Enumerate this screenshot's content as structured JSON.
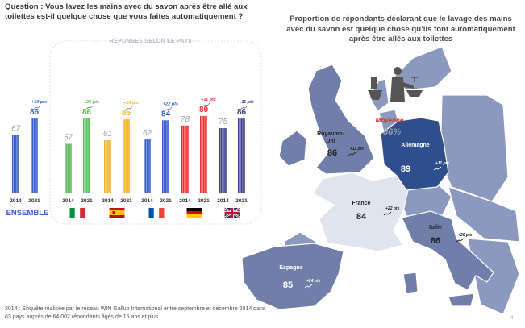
{
  "question": {
    "label": "Question :",
    "text": " Vous lavez les mains avec du savon après être allé aux toilettes est-il quelque chose que vous faites automatiquement ?"
  },
  "panel_title": "RÉPONSES SELON  LE PAYS",
  "map_title": "Proportion de répondants déclarant que le lavage des mains avec du savon est quelque chose qu’ils font automatiquement après être allés aux toilettes",
  "footnote": "2014 : Enquête réalisée par le réseau WIN Gallup International entre septembre et décembre 2014 dans 63 pays auprès de 64 002 répondants âgés de 15 ans et plus.",
  "page_number": "4",
  "colors": {
    "ensemble": "#3a5fc8",
    "italy": "#5cb85c",
    "spain": "#f2b229",
    "france": "#3a5fc8",
    "germany": "#e8302f",
    "uk": "#3a3d8f",
    "map_uk": "#6f7fa9",
    "map_germany": "#2f4f8c",
    "map_france": "#dfe4ee",
    "map_italy": "#6f7fa9",
    "map_spain": "#6f7fa9",
    "map_other": "#8a99bd"
  },
  "chart_data": [
    {
      "type": "bar",
      "categories": [
        "2014",
        "2021"
      ],
      "ylim": [
        0,
        100
      ],
      "groups": [
        {
          "id": "ensemble",
          "label": "ENSEMBLE",
          "values": [
            67,
            86
          ],
          "change": "+19 pts",
          "color": "#3a5fc8"
        },
        {
          "id": "italy",
          "flag": "it",
          "values": [
            57,
            86
          ],
          "change": "+29 pts",
          "color": "#5cb85c"
        },
        {
          "id": "spain",
          "flag": "es",
          "values": [
            61,
            85
          ],
          "change": "+24 pts",
          "color": "#f2b229"
        },
        {
          "id": "france",
          "flag": "fr",
          "values": [
            62,
            84
          ],
          "change": "+22 pts",
          "color": "#3a5fc8"
        },
        {
          "id": "germany",
          "flag": "de",
          "values": [
            78,
            89
          ],
          "change": "+11 pts",
          "color": "#e8302f"
        },
        {
          "id": "uk",
          "flag": "gb",
          "values": [
            75,
            86
          ],
          "change": "+11 pts",
          "color": "#3a3d8f"
        }
      ]
    },
    {
      "type": "map",
      "average": {
        "label": "Moyenne",
        "value": "86%"
      },
      "countries": [
        {
          "id": "uk",
          "name": "Royaume-\nUni",
          "value": 86,
          "change": "+11 pts"
        },
        {
          "id": "germany",
          "name": "Allemagne",
          "value": 89,
          "change": "+11 pts"
        },
        {
          "id": "france",
          "name": "France",
          "value": 84,
          "change": "+22 pts"
        },
        {
          "id": "italy",
          "name": "Italie",
          "value": 86,
          "change": "+29 pts"
        },
        {
          "id": "spain",
          "name": "Espagne",
          "value": 85,
          "change": "+24 pts"
        }
      ]
    }
  ]
}
